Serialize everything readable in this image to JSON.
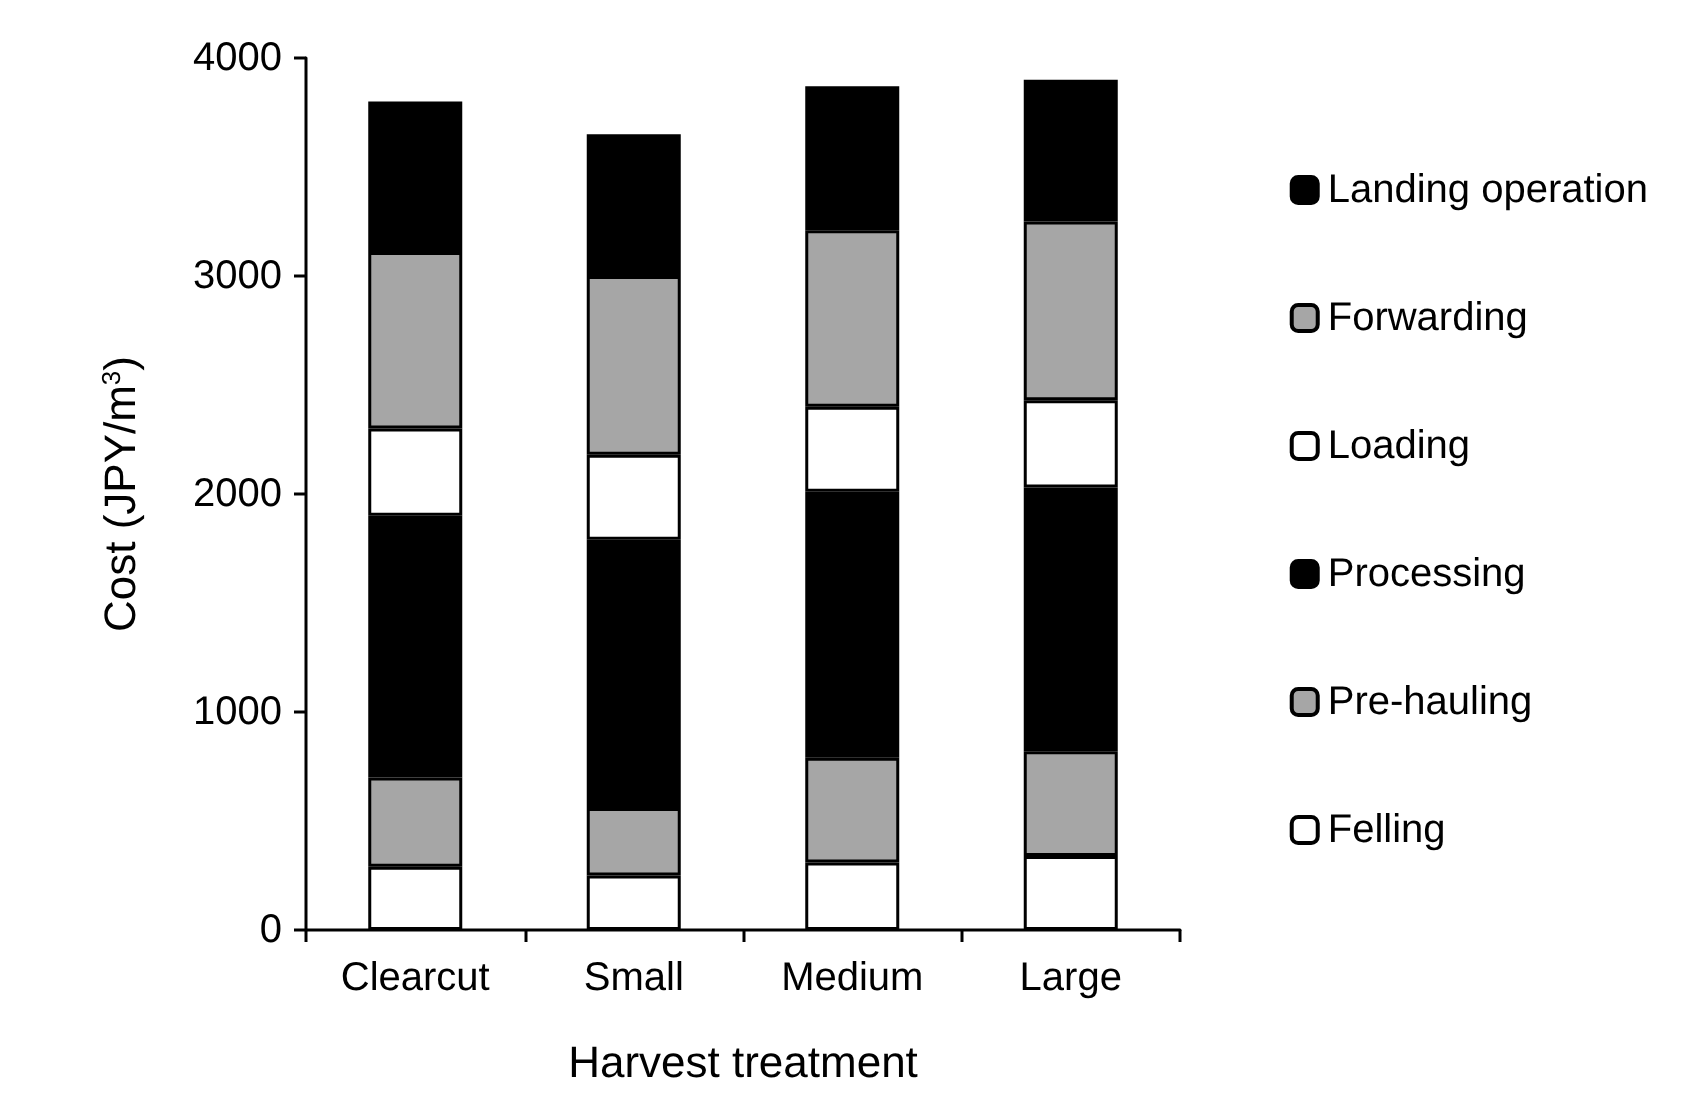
{
  "chart_data": {
    "type": "bar",
    "stacked": true,
    "xlabel": "Harvest treatment",
    "ylabel": "Cost (JPY/m$^{3}$)",
    "categories": [
      "Clearcut",
      "Small",
      "Medium",
      "Large"
    ],
    "series": [
      {
        "name": "Felling",
        "color": "#ffffff",
        "values": [
          290,
          250,
          310,
          340
        ]
      },
      {
        "name": "Pre-hauling",
        "color": "#a6a6a6",
        "values": [
          410,
          310,
          480,
          480
        ]
      },
      {
        "name": "Processing",
        "color": "#000000",
        "values": [
          1200,
          1230,
          1220,
          1210
        ]
      },
      {
        "name": "Loading",
        "color": "#ffffff",
        "values": [
          400,
          390,
          390,
          400
        ]
      },
      {
        "name": "Forwarding",
        "color": "#a6a6a6",
        "values": [
          810,
          820,
          810,
          820
        ]
      },
      {
        "name": "Landing operation",
        "color": "#000000",
        "values": [
          690,
          650,
          660,
          650
        ]
      }
    ],
    "ylim": [
      0,
      4000
    ],
    "yticks": [
      0,
      1000,
      2000,
      3000,
      4000
    ],
    "grid": false,
    "legend": "right"
  }
}
